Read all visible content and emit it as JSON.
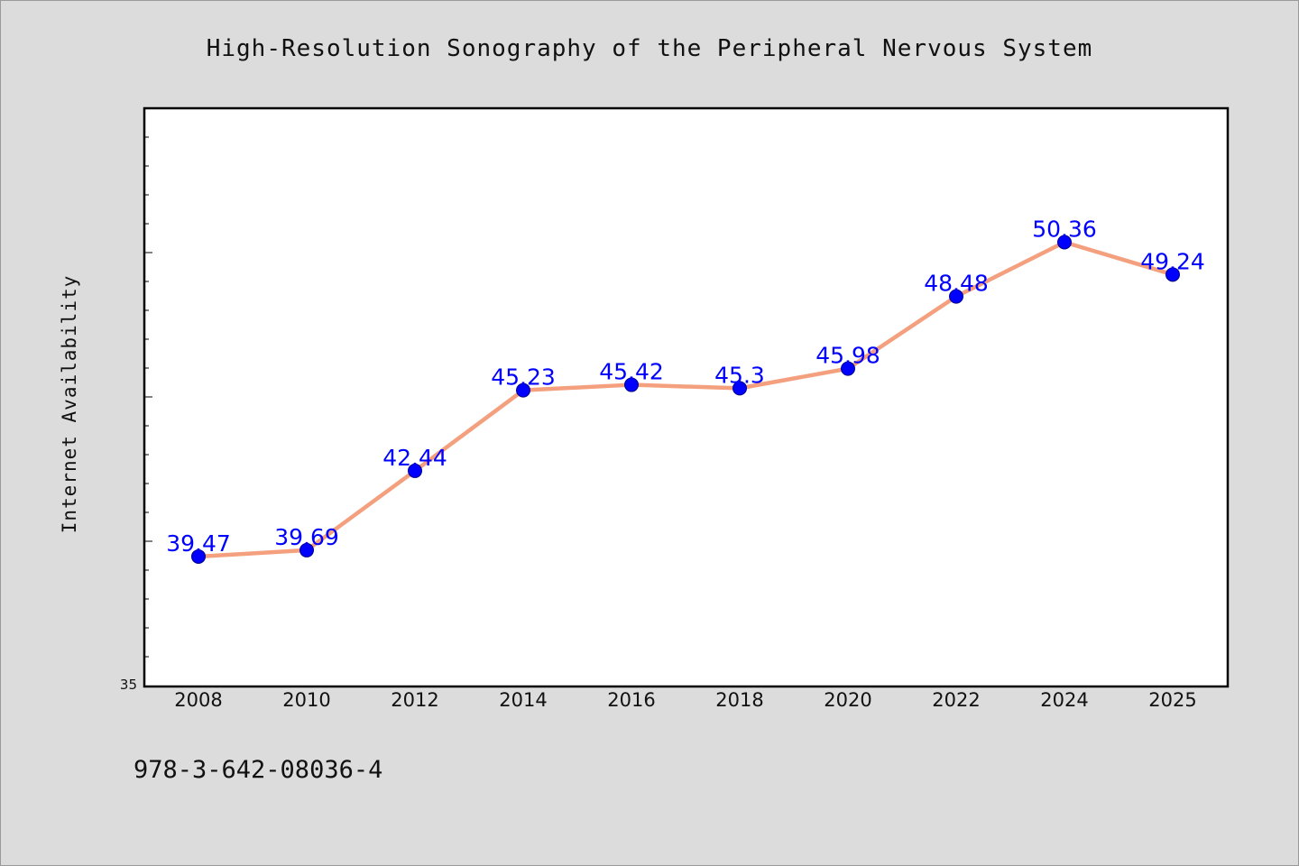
{
  "chart_data": {
    "type": "line",
    "title": "High-Resolution Sonography of the Peripheral Nervous System",
    "xlabel": "",
    "ylabel": "Internet Availability",
    "categories": [
      "2008",
      "2010",
      "2012",
      "2014",
      "2016",
      "2018",
      "2020",
      "2022",
      "2024",
      "2025"
    ],
    "series": [
      {
        "values": [
          39.47,
          39.69,
          42.44,
          45.23,
          45.42,
          45.3,
          45.98,
          48.48,
          50.36,
          49.24
        ]
      }
    ],
    "data_labels": [
      "39.47",
      "39.69",
      "42.44",
      "45.23",
      "45.42",
      "45.3",
      "45.98",
      "48.48",
      "50.36",
      "49.24"
    ],
    "y_tick_labels": [
      "35"
    ],
    "ylim": [
      35,
      55
    ],
    "grid": false,
    "legend": "none",
    "colors": {
      "line": "#f4a07e",
      "marker": "#0000ff",
      "data_label": "#0000ff",
      "plot_background": "#ffffff",
      "page_background": "#dcdcdc"
    }
  },
  "footer": {
    "isbn": "978-3-642-08036-4"
  }
}
